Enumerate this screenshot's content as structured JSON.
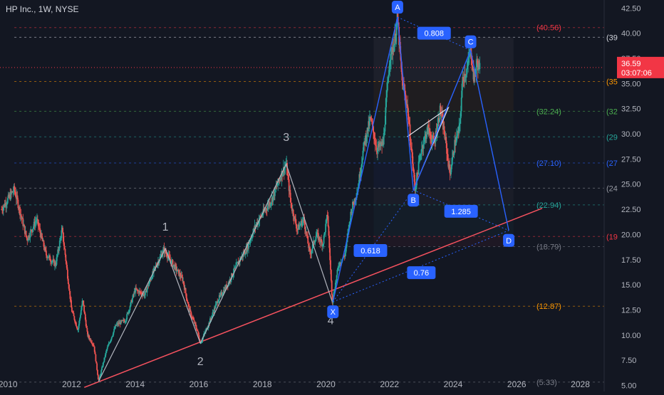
{
  "header": {
    "title": "HP Inc., 1W, NYSE"
  },
  "price_tag": {
    "price": "36.59",
    "countdown": "03:07:06",
    "value": 36.59
  },
  "colors": {
    "background": "#131722",
    "up": "#26a69a",
    "down": "#ef5350",
    "pattern": "#2962ff",
    "wave": "#b2b5be",
    "trendline": "#f7525f",
    "price_tag": "#f23645",
    "grid_text": "#b2b5be"
  },
  "chart_data": {
    "type": "line",
    "title": "HP Inc., 1W, NYSE",
    "xlabel": "",
    "ylabel": "",
    "xlim": [
      2009.75,
      2028.75
    ],
    "ylim": [
      4.4,
      43.3
    ],
    "grid": false,
    "x_ticks": [
      {
        "value": 2010,
        "label": "2010"
      },
      {
        "value": 2012,
        "label": "2012"
      },
      {
        "value": 2014,
        "label": "2014"
      },
      {
        "value": 2016,
        "label": "2016"
      },
      {
        "value": 2018,
        "label": "2018"
      },
      {
        "value": 2020,
        "label": "2020"
      },
      {
        "value": 2022,
        "label": "2022"
      },
      {
        "value": 2024,
        "label": "2024"
      },
      {
        "value": 2026,
        "label": "2026"
      },
      {
        "value": 2028,
        "label": "2028"
      }
    ],
    "y_ticks": [
      {
        "value": 42.5,
        "label": "42.50"
      },
      {
        "value": 40.0,
        "label": "40.00"
      },
      {
        "value": 37.5,
        "label": "37.50"
      },
      {
        "value": 35.0,
        "label": "35.00"
      },
      {
        "value": 32.5,
        "label": "32.50"
      },
      {
        "value": 30.0,
        "label": "30.00"
      },
      {
        "value": 27.5,
        "label": "27.50"
      },
      {
        "value": 25.0,
        "label": "25.00"
      },
      {
        "value": 22.5,
        "label": "22.50"
      },
      {
        "value": 20.0,
        "label": "20.00"
      },
      {
        "value": 17.5,
        "label": "17.50"
      },
      {
        "value": 15.0,
        "label": "15.00"
      },
      {
        "value": 12.5,
        "label": "12.50"
      },
      {
        "value": 10.0,
        "label": "10.00"
      },
      {
        "value": 7.5,
        "label": "7.50"
      },
      {
        "value": 5.0,
        "label": "5.00"
      }
    ],
    "price_path": [
      [
        2009.8,
        22.5
      ],
      [
        2010.2,
        24.5
      ],
      [
        2010.4,
        22.0
      ],
      [
        2010.6,
        19.5
      ],
      [
        2010.9,
        21.5
      ],
      [
        2011.2,
        18.0
      ],
      [
        2011.5,
        17.0
      ],
      [
        2011.7,
        20.5
      ],
      [
        2011.8,
        18.0
      ],
      [
        2012.0,
        12.5
      ],
      [
        2012.2,
        10.5
      ],
      [
        2012.35,
        13.5
      ],
      [
        2012.5,
        10.0
      ],
      [
        2012.7,
        9.0
      ],
      [
        2012.85,
        5.4
      ],
      [
        2013.1,
        8.5
      ],
      [
        2013.4,
        11.0
      ],
      [
        2013.7,
        11.5
      ],
      [
        2014.0,
        14.5
      ],
      [
        2014.3,
        14.0
      ],
      [
        2014.6,
        16.5
      ],
      [
        2014.9,
        18.5
      ],
      [
        2015.2,
        17.0
      ],
      [
        2015.5,
        15.5
      ],
      [
        2015.7,
        12.5
      ],
      [
        2015.95,
        10.5
      ],
      [
        2016.05,
        9.2
      ],
      [
        2016.3,
        11.0
      ],
      [
        2016.6,
        13.5
      ],
      [
        2016.9,
        15.0
      ],
      [
        2017.2,
        17.0
      ],
      [
        2017.5,
        18.5
      ],
      [
        2017.8,
        21.0
      ],
      [
        2018.0,
        22.0
      ],
      [
        2018.3,
        23.5
      ],
      [
        2018.6,
        26.0
      ],
      [
        2018.75,
        27.0
      ],
      [
        2018.9,
        23.0
      ],
      [
        2019.1,
        20.5
      ],
      [
        2019.3,
        21.5
      ],
      [
        2019.5,
        18.0
      ],
      [
        2019.7,
        20.0
      ],
      [
        2019.9,
        19.0
      ],
      [
        2020.05,
        22.0
      ],
      [
        2020.2,
        13.3
      ],
      [
        2020.4,
        17.0
      ],
      [
        2020.6,
        18.0
      ],
      [
        2020.8,
        22.5
      ],
      [
        2021.0,
        24.5
      ],
      [
        2021.2,
        29.0
      ],
      [
        2021.4,
        31.5
      ],
      [
        2021.6,
        28.5
      ],
      [
        2021.8,
        29.0
      ],
      [
        2022.0,
        37.5
      ],
      [
        2022.15,
        39.0
      ],
      [
        2022.25,
        41.5
      ],
      [
        2022.4,
        35.0
      ],
      [
        2022.55,
        33.0
      ],
      [
        2022.7,
        28.0
      ],
      [
        2022.8,
        24.5
      ],
      [
        2023.0,
        28.5
      ],
      [
        2023.2,
        30.5
      ],
      [
        2023.4,
        29.0
      ],
      [
        2023.6,
        32.5
      ],
      [
        2023.75,
        29.5
      ],
      [
        2023.9,
        26.0
      ],
      [
        2024.05,
        29.0
      ],
      [
        2024.2,
        30.5
      ],
      [
        2024.3,
        35.5
      ],
      [
        2024.45,
        36.5
      ],
      [
        2024.55,
        38.5
      ],
      [
        2024.65,
        35.5
      ],
      [
        2024.75,
        37.0
      ],
      [
        2024.85,
        36.59
      ]
    ],
    "levels": [
      {
        "value": 40.56,
        "label": "(40.56)",
        "color": "#f23645"
      },
      {
        "value": 39.6,
        "label": "(39",
        "color": "#d1d4dc"
      },
      {
        "value": 35.2,
        "label": "(35",
        "color": "#ff9800"
      },
      {
        "value": 32.24,
        "label": "(32.24)",
        "color": "#4caf50"
      },
      {
        "value": 32.24,
        "label": "(32",
        "color": "#4caf50"
      },
      {
        "value": 29.7,
        "label": "(29",
        "color": "#26a69a"
      },
      {
        "value": 27.1,
        "label": "(27.10)",
        "color": "#2962ff"
      },
      {
        "value": 27.1,
        "label": "(27",
        "color": "#2962ff"
      },
      {
        "value": 24.6,
        "label": "(24",
        "color": "#9598a1"
      },
      {
        "value": 22.94,
        "label": "(22.94)",
        "color": "#26a69a"
      },
      {
        "value": 19.8,
        "label": "(19",
        "color": "#f23645"
      },
      {
        "value": 18.79,
        "label": "(18.79)",
        "color": "#787b86"
      },
      {
        "value": 12.87,
        "label": "(12.87)",
        "color": "#ff9800"
      },
      {
        "value": 5.33,
        "label": "(5.33)",
        "color": "#787b86"
      }
    ],
    "harmonic_points": [
      {
        "label": "X",
        "x": 2020.22,
        "y": 13.3
      },
      {
        "label": "A",
        "x": 2022.25,
        "y": 41.6
      },
      {
        "label": "B",
        "x": 2022.75,
        "y": 24.4
      },
      {
        "label": "C",
        "x": 2024.55,
        "y": 38.3
      },
      {
        "label": "D",
        "x": 2025.75,
        "y": 20.4
      }
    ],
    "ratios": [
      {
        "label": "0.618",
        "x": 2021.4,
        "y": 18.4
      },
      {
        "label": "0.808",
        "x": 2023.4,
        "y": 40.0
      },
      {
        "label": "1.285",
        "x": 2024.25,
        "y": 22.3
      },
      {
        "label": "0.76",
        "x": 2023.0,
        "y": 16.2
      }
    ],
    "waves": [
      {
        "label": "1",
        "x": 2014.95,
        "y": 20.4
      },
      {
        "label": "2",
        "x": 2016.05,
        "y": 7.0
      },
      {
        "label": "3",
        "x": 2018.75,
        "y": 29.3
      },
      {
        "label": "4",
        "x": 2020.15,
        "y": 11.1
      }
    ],
    "wave_path": [
      [
        2012.85,
        5.4
      ],
      [
        2014.95,
        18.6
      ],
      [
        2016.05,
        9.2
      ],
      [
        2018.75,
        27.0
      ],
      [
        2020.2,
        13.3
      ]
    ],
    "trendline": [
      [
        2012.4,
        4.8
      ],
      [
        2026.8,
        22.6
      ]
    ],
    "triangle": [
      [
        2022.55,
        29.7
      ],
      [
        2023.85,
        32.6
      ],
      [
        2022.85,
        25.2
      ]
    ]
  }
}
